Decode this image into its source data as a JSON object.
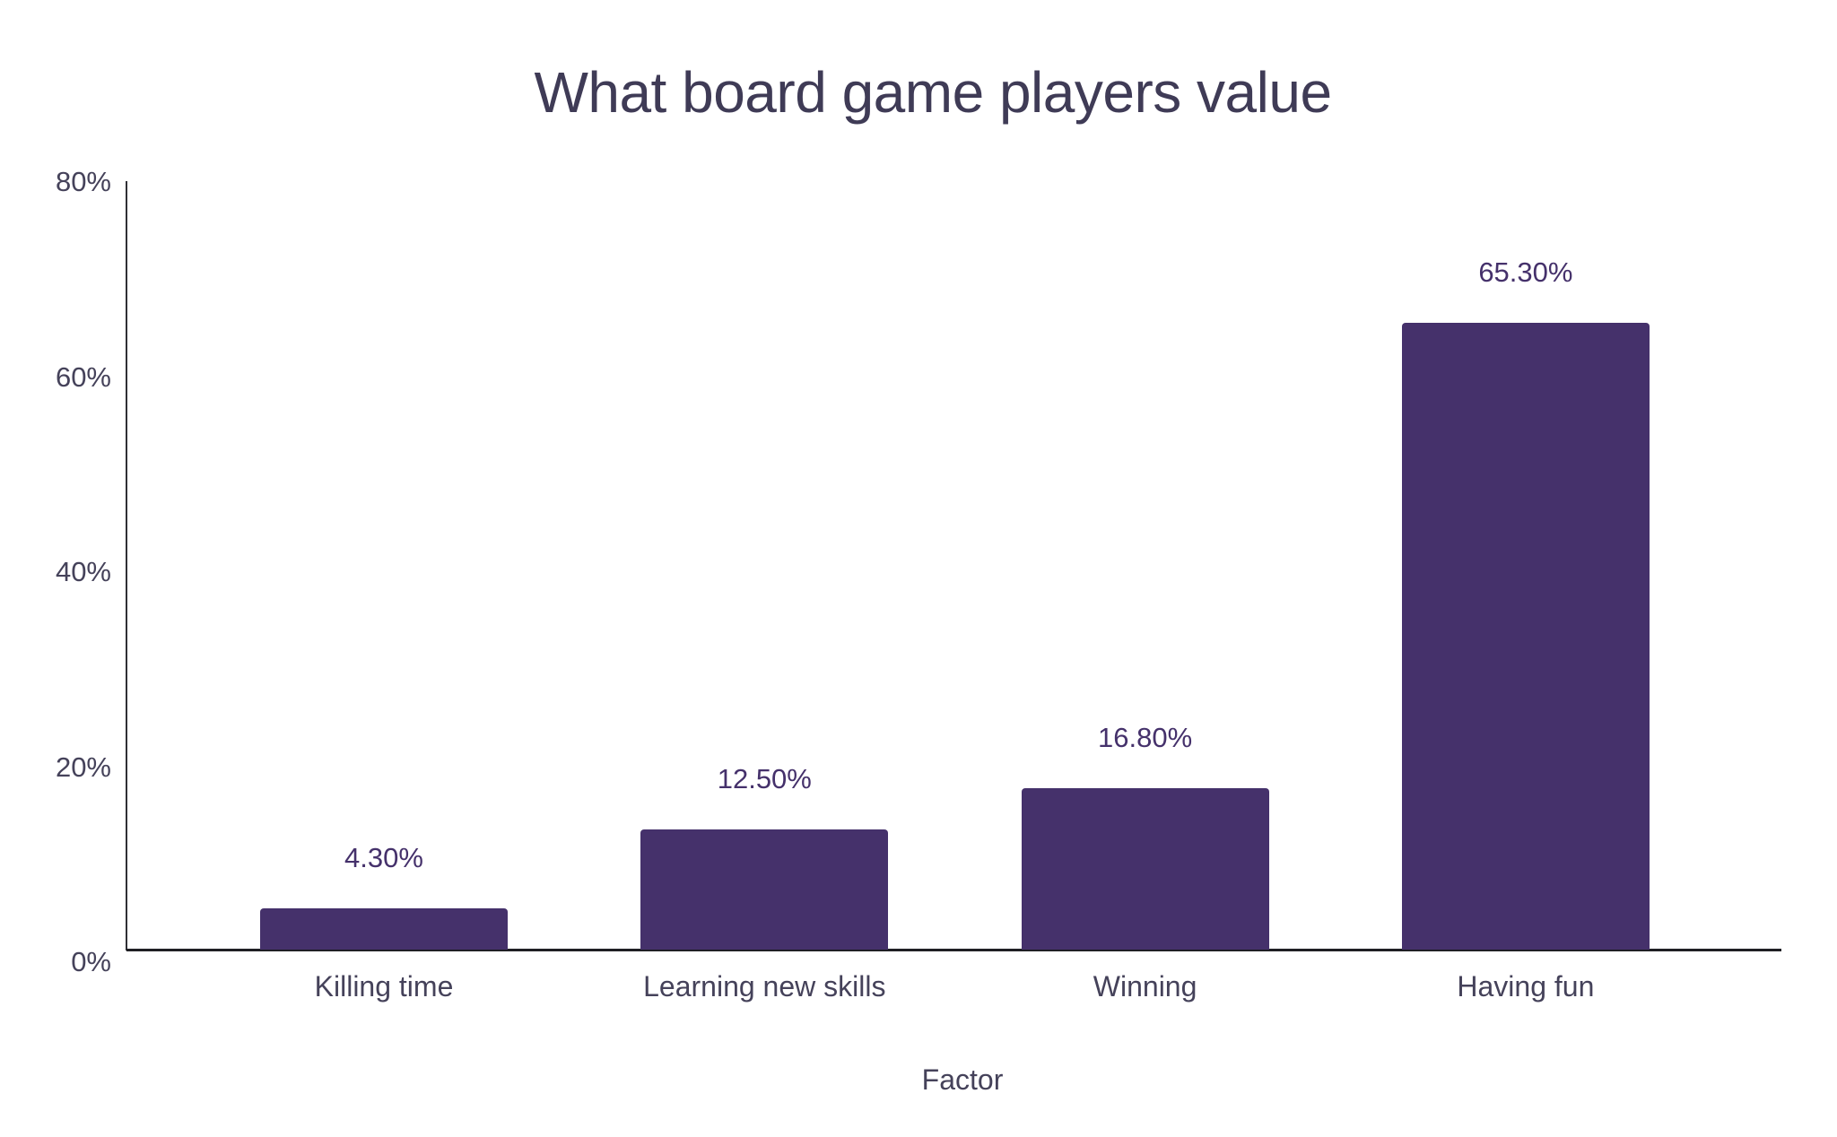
{
  "chart_data": {
    "type": "bar",
    "title": "What board game players value",
    "xlabel": "Factor",
    "ylabel": "",
    "categories": [
      "Killing time",
      "Learning new skills",
      "Winning",
      "Having fun"
    ],
    "values": [
      4.3,
      12.5,
      16.8,
      65.3
    ],
    "value_labels": [
      "4.30%",
      "12.50%",
      "16.80%",
      "65.30%"
    ],
    "ylim": [
      0,
      80
    ],
    "yticks": [
      "0%",
      "20%",
      "40%",
      "60%",
      "80%"
    ],
    "grid": false,
    "legend": null,
    "bar_color": "#45316b"
  }
}
